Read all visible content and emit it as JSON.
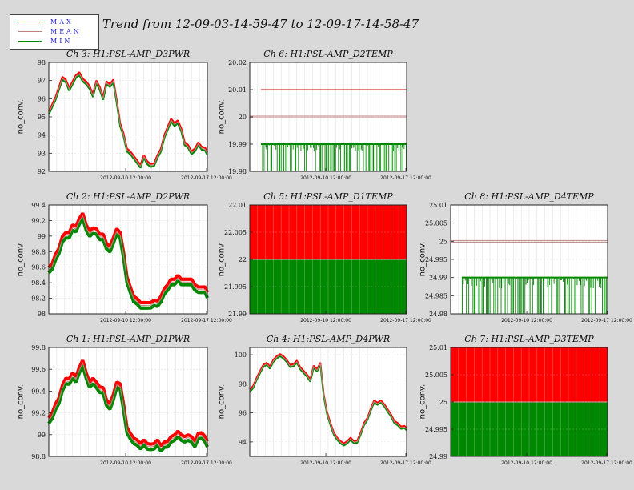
{
  "title": "Trend from 12-09-03-14-59-47 to 12-09-17-14-58-47",
  "legend": [
    {
      "label": "MAX",
      "color": "#cc0000"
    },
    {
      "label": "MEAN",
      "color": "#c08080"
    },
    {
      "label": "MIN",
      "color": "#008800"
    }
  ],
  "colors": {
    "max": "#ff0000",
    "mean": "#bf8585",
    "min": "#008800"
  },
  "xticks": [
    "2012-09-10 12:00:00",
    "2012-09-17 12:00:00"
  ],
  "chart_data": [
    {
      "type": "line",
      "title": "Ch 3: H1:PSL-AMP_D3PWR",
      "ylabel": "no_conv.",
      "ylim": [
        92,
        98
      ],
      "yticks": [
        "98",
        "97",
        "96",
        "95",
        "94",
        "93",
        "92"
      ],
      "ytick_values": [
        98,
        97,
        96,
        95,
        94,
        93,
        92
      ],
      "band": 0.08,
      "x": [
        0,
        0.2,
        0.6,
        0.9,
        1.2,
        1.5,
        1.8,
        2.1,
        2.4,
        2.7,
        3,
        3.3,
        3.6,
        3.9,
        4.2,
        4.5,
        4.8,
        5.1,
        5.4,
        5.7,
        6,
        6.3,
        6.6,
        6.9,
        7.2,
        7.5,
        7.8,
        8.1,
        8.4,
        8.7,
        9,
        9.3,
        9.6,
        9.9,
        10.2,
        10.5,
        10.8,
        11.1,
        11.4,
        11.7,
        12,
        12.3,
        12.6,
        12.9,
        13.2,
        13.5,
        13.8,
        14
      ],
      "values": [
        95.2,
        95.5,
        96.0,
        96.6,
        97.1,
        97.0,
        96.5,
        96.9,
        97.2,
        97.4,
        97.0,
        96.9,
        96.6,
        96.2,
        96.9,
        96.6,
        96.0,
        96.9,
        96.7,
        97.0,
        95.8,
        94.6,
        94.0,
        93.2,
        93.0,
        92.8,
        92.5,
        92.3,
        92.8,
        92.5,
        92.3,
        92.4,
        92.8,
        93.2,
        93.9,
        94.4,
        94.8,
        94.6,
        94.7,
        94.3,
        93.5,
        93.4,
        93.0,
        93.2,
        93.5,
        93.3,
        93.2,
        93.0
      ],
      "xmax": 14
    },
    {
      "type": "line",
      "title": "Ch 6: H1:PSL-AMP_D2TEMP",
      "ylabel": "no_conv.",
      "ylim": [
        19.98,
        20.02
      ],
      "yticks": [
        "20.02",
        "20.01",
        "20",
        "19.99",
        "19.98"
      ],
      "ytick_values": [
        20.02,
        20.01,
        20,
        19.99,
        19.98
      ],
      "max_level": 20.01,
      "mean_level": 20.0,
      "min_level": 19.99,
      "min_floor": 19.98,
      "mode": "levels"
    },
    {
      "type": "line",
      "title": "Ch 2: H1:PSL-AMP_D2PWR",
      "ylabel": "no_conv.",
      "ylim": [
        98,
        99.4
      ],
      "yticks": [
        "99.4",
        "99.2",
        "99",
        "98.8",
        "98.6",
        "98.4",
        "98.2",
        "98"
      ],
      "ytick_values": [
        99.4,
        99.2,
        99,
        98.8,
        98.6,
        98.4,
        98.2,
        98
      ],
      "band": 0.035,
      "x": [
        0,
        0.3,
        0.6,
        0.9,
        1.2,
        1.5,
        1.8,
        2.1,
        2.4,
        2.7,
        3,
        3.3,
        3.6,
        3.9,
        4.2,
        4.5,
        4.8,
        5.1,
        5.4,
        5.7,
        6,
        6.3,
        6.6,
        6.9,
        7.2,
        7.5,
        7.8,
        8.1,
        8.4,
        8.7,
        9,
        9.3,
        9.6,
        9.9,
        10.2,
        10.5,
        10.8,
        11.1,
        11.4,
        11.7,
        12,
        12.3,
        12.6,
        12.9,
        13.2,
        13.5,
        13.8,
        14
      ],
      "values": [
        98.55,
        98.62,
        98.72,
        98.82,
        98.95,
        99.02,
        99.0,
        99.12,
        99.08,
        99.2,
        99.25,
        99.12,
        99.02,
        99.08,
        99.05,
        99.0,
        98.98,
        98.88,
        98.82,
        98.95,
        99.05,
        99.02,
        98.75,
        98.45,
        98.3,
        98.2,
        98.15,
        98.12,
        98.1,
        98.12,
        98.1,
        98.15,
        98.12,
        98.2,
        98.28,
        98.35,
        98.4,
        98.42,
        98.45,
        98.42,
        98.4,
        98.42,
        98.4,
        98.35,
        98.3,
        98.32,
        98.3,
        98.25
      ],
      "xmax": 14
    },
    {
      "type": "area",
      "title": "Ch 5: H1:PSL-AMP_D1TEMP",
      "ylabel": "no_conv.",
      "ylim": [
        21.99,
        22.01
      ],
      "yticks": [
        "22.01",
        "22.005",
        "22",
        "21.995",
        "21.99"
      ],
      "ytick_values": [
        22.01,
        22.005,
        22,
        21.995,
        21.99
      ],
      "max_level": 22.01,
      "mean_level": 22.0,
      "min_level": 21.99,
      "mode": "fill"
    },
    {
      "type": "line",
      "title": "Ch 8: H1:PSL-AMP_D4TEMP",
      "ylabel": "no_conv.",
      "ylim": [
        24.98,
        25.01
      ],
      "yticks": [
        "25.01",
        "25.005",
        "25",
        "24.995",
        "24.99",
        "24.985",
        "24.98"
      ],
      "ytick_values": [
        25.01,
        25.005,
        25,
        24.995,
        24.99,
        24.985,
        24.98
      ],
      "max_level": 25.0,
      "mean_level": 25.0,
      "min_level": 24.99,
      "min_floor": 24.98,
      "mode": "levels"
    },
    {
      "type": "line",
      "title": "Ch 1: H1:PSL-AMP_D1PWR",
      "ylabel": "no_conv.",
      "ylim": [
        98.8,
        99.8
      ],
      "yticks": [
        "99.8",
        "99.6",
        "99.4",
        "99.2",
        "99",
        "98.8"
      ],
      "ytick_values": [
        99.8,
        99.6,
        99.4,
        99.2,
        99,
        98.8
      ],
      "band": 0.025,
      "x": [
        0,
        0.3,
        0.6,
        0.9,
        1.2,
        1.5,
        1.8,
        2.1,
        2.4,
        2.7,
        3,
        3.3,
        3.6,
        3.9,
        4.2,
        4.5,
        4.8,
        5.1,
        5.4,
        5.7,
        6,
        6.3,
        6.6,
        6.9,
        7.2,
        7.5,
        7.8,
        8.1,
        8.4,
        8.7,
        9,
        9.3,
        9.6,
        9.9,
        10.2,
        10.5,
        10.8,
        11.1,
        11.4,
        11.7,
        12,
        12.3,
        12.6,
        12.9,
        13.2,
        13.5,
        13.8,
        14
      ],
      "values": [
        99.12,
        99.18,
        99.25,
        99.32,
        99.42,
        99.5,
        99.48,
        99.55,
        99.5,
        99.6,
        99.65,
        99.55,
        99.45,
        99.5,
        99.45,
        99.42,
        99.4,
        99.3,
        99.25,
        99.35,
        99.45,
        99.45,
        99.25,
        99.05,
        98.98,
        98.95,
        98.92,
        98.9,
        98.92,
        98.9,
        98.88,
        98.9,
        98.92,
        98.88,
        98.9,
        98.92,
        98.95,
        98.98,
        99.0,
        98.98,
        98.95,
        98.98,
        98.95,
        98.92,
        98.98,
        99.0,
        98.95,
        98.92
      ],
      "xmax": 14
    },
    {
      "type": "line",
      "title": "Ch 4: H1:PSL-AMP_D4PWR",
      "ylabel": "no_conv.",
      "ylim": [
        93,
        100.5
      ],
      "yticks": [
        "100",
        "98",
        "96",
        "94"
      ],
      "ytick_values": [
        100,
        98,
        96,
        94
      ],
      "band": 0.08,
      "x": [
        0,
        0.3,
        0.6,
        0.9,
        1.2,
        1.5,
        1.8,
        2.1,
        2.4,
        2.7,
        3,
        3.3,
        3.6,
        3.9,
        4.2,
        4.5,
        4.8,
        5.1,
        5.4,
        5.7,
        6,
        6.3,
        6.6,
        6.9,
        7.2,
        7.5,
        7.8,
        8.1,
        8.4,
        8.7,
        9,
        9.3,
        9.6,
        9.9,
        10.2,
        10.5,
        10.8,
        11.1,
        11.4,
        11.7,
        12,
        12.3,
        12.6,
        12.9,
        13.2,
        13.5,
        13.8,
        14
      ],
      "values": [
        97.5,
        97.8,
        98.3,
        98.8,
        99.2,
        99.4,
        99.1,
        99.6,
        99.8,
        100.0,
        99.8,
        99.6,
        99.2,
        99.3,
        99.5,
        99.1,
        98.8,
        98.6,
        98.2,
        99.2,
        98.9,
        99.4,
        97.2,
        96.0,
        95.2,
        94.6,
        94.2,
        94.0,
        93.8,
        94.0,
        94.2,
        94.0,
        94.0,
        94.6,
        95.2,
        95.6,
        96.2,
        96.8,
        96.6,
        96.8,
        96.5,
        96.2,
        95.8,
        95.4,
        95.2,
        95.0,
        95.0,
        94.9
      ],
      "xmax": 14
    },
    {
      "type": "area",
      "title": "Ch 7: H1:PSL-AMP_D3TEMP",
      "ylabel": "no_conv.",
      "ylim": [
        24.99,
        25.01
      ],
      "yticks": [
        "25.01",
        "25.005",
        "25",
        "24.995",
        "24.99"
      ],
      "ytick_values": [
        25.01,
        25.005,
        25,
        24.995,
        24.99
      ],
      "max_level": 25.01,
      "mean_level": 25.0,
      "min_level": 24.99,
      "mode": "fill"
    }
  ]
}
